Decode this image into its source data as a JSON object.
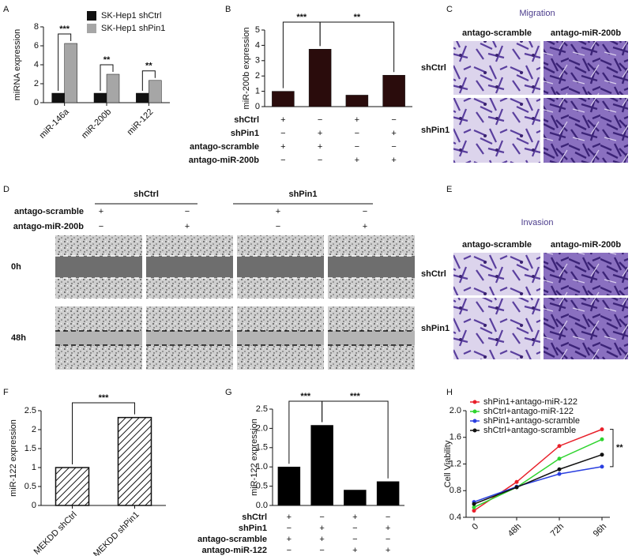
{
  "chart_data": [
    {
      "type": "bar",
      "label": "A",
      "ylabel": "miRNA expression",
      "categories": [
        "miR-146a",
        "miR-200b",
        "miR-122"
      ],
      "series": [
        {
          "name": "SK-Hep1 shCtrl",
          "color": "#111111",
          "values": [
            1.0,
            1.0,
            1.0
          ]
        },
        {
          "name": "SK-Hep1 shPin1",
          "color": "#a6a6a6",
          "values": [
            6.25,
            3.0,
            2.35
          ]
        }
      ],
      "ylim": [
        0,
        8
      ],
      "yticks": [
        0,
        2,
        4,
        6,
        8
      ],
      "annotations": [
        "***",
        "**",
        "**"
      ]
    },
    {
      "type": "bar",
      "label": "B",
      "ylabel": "miR-200b expression",
      "categories": [
        null,
        null,
        null,
        null
      ],
      "values": [
        1.0,
        3.75,
        0.75,
        2.05
      ],
      "color": "#2a0c0c",
      "ylim": [
        0,
        5
      ],
      "yticks": [
        0,
        1,
        2,
        3,
        4,
        5
      ],
      "annotations": [
        "***",
        "**"
      ],
      "conditions": [
        {
          "name": "shCtrl",
          "signs": [
            "+",
            "−",
            "+",
            "−"
          ]
        },
        {
          "name": "shPin1",
          "signs": [
            "−",
            "+",
            "−",
            "+"
          ]
        },
        {
          "name": "antago-scramble",
          "signs": [
            "+",
            "+",
            "−",
            "−"
          ]
        },
        {
          "name": "antago-miR-200b",
          "signs": [
            "−",
            "−",
            "+",
            "+"
          ]
        }
      ]
    },
    {
      "type": "bar",
      "label": "F",
      "ylabel": "miR-122 expression",
      "categories": [
        "MEKDD shCtrl",
        "MEKDD shPin1"
      ],
      "values": [
        1.0,
        2.32
      ],
      "color": "#111111",
      "hatch": true,
      "ylim": [
        0,
        2.5
      ],
      "yticks": [
        0,
        0.5,
        1,
        1.5,
        2,
        2.5
      ],
      "annotations": [
        "***"
      ]
    },
    {
      "type": "bar",
      "label": "G",
      "ylabel": "miR-122 expression",
      "categories": [
        null,
        null,
        null,
        null
      ],
      "values": [
        1.0,
        2.08,
        0.4,
        0.62
      ],
      "color": "#000000",
      "ylim": [
        0,
        2.5
      ],
      "yticks": [
        {
          "value": 0,
          "label": "0.0"
        },
        0.5,
        {
          "value": 1,
          "label": "1.0"
        },
        1.5,
        {
          "value": 2,
          "label": "2.0"
        },
        2.5
      ],
      "annotations": [
        "***",
        "***"
      ],
      "conditions": [
        {
          "name": "shCtrl",
          "signs": [
            "+",
            "−",
            "+",
            "−"
          ]
        },
        {
          "name": "shPin1",
          "signs": [
            "−",
            "+",
            "−",
            "+"
          ]
        },
        {
          "name": "antago-scramble",
          "signs": [
            "+",
            "+",
            "−",
            "−"
          ]
        },
        {
          "name": "antago-miR-122",
          "signs": [
            "−",
            "−",
            "+",
            "+"
          ]
        }
      ]
    },
    {
      "type": "line",
      "label": "H",
      "ylabel": "Cell Viability",
      "categories": [
        "0",
        "48h",
        "72h",
        "96h"
      ],
      "series": [
        {
          "name": "shPin1+antago-miR-122",
          "color": "#e8202a",
          "values": [
            0.5,
            0.93,
            1.47,
            1.72
          ]
        },
        {
          "name": "shCtrl+antago-miR-122",
          "color": "#2ed42e",
          "values": [
            0.55,
            0.85,
            1.28,
            1.57
          ]
        },
        {
          "name": "shPin1+antago-scramble",
          "color": "#2a3fe0",
          "values": [
            0.63,
            0.86,
            1.05,
            1.16
          ]
        },
        {
          "name": "shCtrl+antago-scramble",
          "color": "#111111",
          "values": [
            0.6,
            0.85,
            1.12,
            1.34
          ]
        }
      ],
      "ylim": [
        0.4,
        2.0
      ],
      "yticks": [
        0.4,
        0.8,
        1.2,
        1.6,
        {
          "value": 2,
          "label": "2.0"
        }
      ],
      "annotations": [
        "**"
      ]
    }
  ],
  "image_panels": [
    {
      "label": "C",
      "title": "Migration",
      "columns": [
        "antago-scramble",
        "antago-miR-200b"
      ],
      "rows": [
        "shCtrl",
        "shPin1"
      ]
    },
    {
      "label": "D",
      "groups": [
        "shCtrl",
        "shPin1"
      ],
      "conditions": [
        {
          "name": "antago-scramble",
          "signs": [
            "+",
            "−",
            "+",
            "−"
          ]
        },
        {
          "name": "antago-miR-200b",
          "signs": [
            "−",
            "+",
            "−",
            "+"
          ]
        }
      ],
      "rows": [
        "0h",
        "48h"
      ]
    },
    {
      "label": "E",
      "title": "Invasion",
      "columns": [
        "antago-scramble",
        "antago-miR-200b"
      ],
      "rows": [
        "shCtrl",
        "shPin1"
      ]
    }
  ]
}
